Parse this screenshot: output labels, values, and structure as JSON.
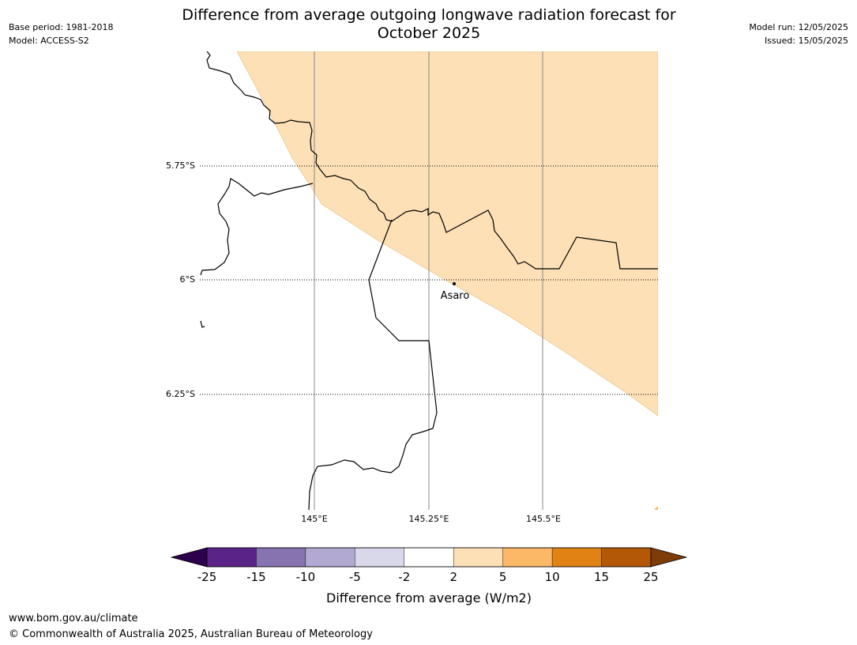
{
  "header": {
    "base_period": "Base period: 1981-2018",
    "model": "Model: ACCESS-S2",
    "model_run": "Model run: 12/05/2025",
    "issued": "Issued: 15/05/2025",
    "title_line1": "Difference from average outgoing longwave radiation forecast for",
    "title_line2": "October 2025"
  },
  "map": {
    "lat_labels": [
      "5.75°S",
      "6°S",
      "6.25°S"
    ],
    "lon_labels": [
      "145°E",
      "145.25°E",
      "145.5°E"
    ],
    "place": {
      "name": "Asaro"
    },
    "shaded_category": "2 to 5",
    "shaded_color": "#fde0b6"
  },
  "colorbar": {
    "title": "Difference from average (W/m2)",
    "ticks": [
      "-25",
      "-15",
      "-10",
      "-5",
      "-2",
      "2",
      "5",
      "10",
      "15",
      "25"
    ],
    "colors": [
      "#5a2388",
      "#8673b0",
      "#b2a9d2",
      "#d9d8ea",
      "#ffffff",
      "#fde0b6",
      "#fbb866",
      "#e08214",
      "#b35806"
    ],
    "under_color": "#2d004b",
    "over_color": "#7f3b08"
  },
  "footer": {
    "url": "www.bom.gov.au/climate",
    "copyright": "© Commonwealth of Australia 2025, Australian Bureau of Meteorology"
  }
}
